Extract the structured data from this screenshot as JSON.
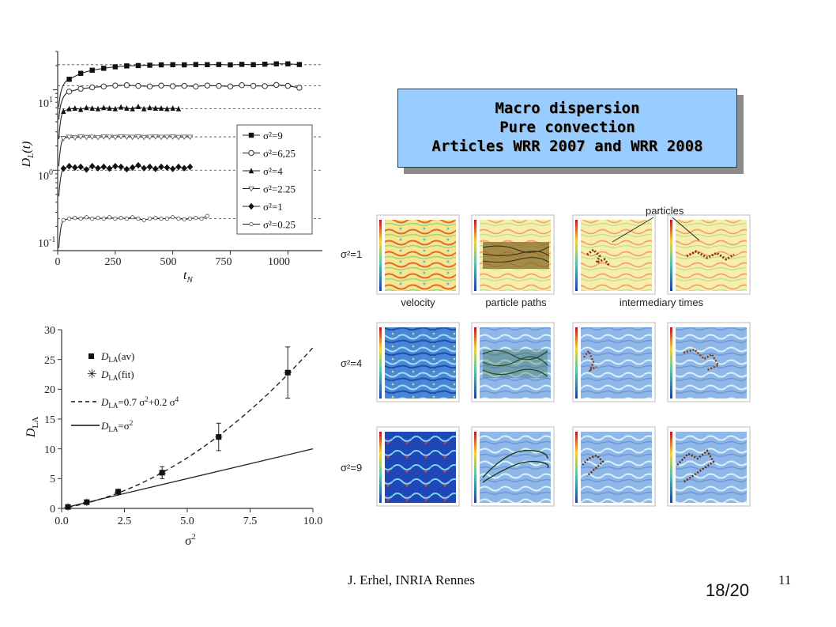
{
  "callout": {
    "line1": "Macro dispersion",
    "line2": "Pure convection",
    "line3": "Articles WRR 2007 and WRR 2008"
  },
  "footer": {
    "author": "J. Erhel, INRIA Rennes",
    "page_number": "11",
    "slide_counter": "18/20"
  },
  "simulation_figure": {
    "rows": [
      "σ²=1",
      "σ²=4",
      "σ²=9"
    ],
    "column_labels": [
      "velocity",
      "particle paths",
      "intermediary times"
    ],
    "annotation": "particles"
  },
  "chart_data": [
    {
      "type": "line",
      "xlabel": "t_N",
      "ylabel": "D_L(t)",
      "xlim": [
        0,
        1150
      ],
      "ylim": [
        0.1,
        30
      ],
      "yscale": "log",
      "x_ticks": [
        "0",
        "250",
        "500",
        "750",
        "1000"
      ],
      "y_ticks": [
        "10^-1",
        "10^0",
        "10^1"
      ],
      "legend_position": "right",
      "series": [
        {
          "name": "σ²=9",
          "marker": "square-filled",
          "asymptote": 20.5,
          "x": [
            50,
            100,
            150,
            200,
            250,
            300,
            350,
            400,
            450,
            500,
            550,
            600,
            650,
            700,
            750,
            800,
            850,
            900,
            950,
            1000,
            1050
          ],
          "y": [
            13.5,
            16,
            17.5,
            18.5,
            19.3,
            19.8,
            20,
            20.2,
            20.4,
            20.5,
            20.4,
            20.6,
            20.5,
            20.6,
            20.4,
            20.7,
            20.5,
            20.8,
            21,
            21,
            20.6
          ]
        },
        {
          "name": "σ²=6,25",
          "marker": "circle-open",
          "asymptote": 11.2,
          "x": [
            50,
            100,
            150,
            200,
            250,
            300,
            350,
            400,
            450,
            500,
            550,
            600,
            650,
            700,
            750,
            800,
            850,
            900,
            950,
            1000,
            1050
          ],
          "y": [
            9.5,
            10.3,
            10.7,
            11,
            11.3,
            11.4,
            11.2,
            11,
            11.3,
            11.1,
            11.2,
            11,
            11.3,
            11.2,
            11,
            11.4,
            11.2,
            11.1,
            11.5,
            11.2,
            10.6
          ]
        },
        {
          "name": "σ²=4",
          "marker": "triangle-filled",
          "asymptote": 5.8,
          "x": [
            25,
            50,
            75,
            100,
            125,
            150,
            175,
            200,
            225,
            250,
            275,
            300,
            325,
            350,
            375,
            400,
            425,
            450,
            475,
            500,
            525
          ],
          "y": [
            5.4,
            5.8,
            5.9,
            5.7,
            6.0,
            5.9,
            5.8,
            6.0,
            5.9,
            5.8,
            6.1,
            5.9,
            5.8,
            6.2,
            5.8,
            6.0,
            5.9,
            5.9,
            5.8,
            5.9,
            5.8
          ]
        },
        {
          "name": "σ²=2.25",
          "marker": "triangle-down-open",
          "asymptote": 2.6,
          "x": [
            25,
            50,
            75,
            100,
            125,
            150,
            175,
            200,
            225,
            250,
            275,
            300,
            325,
            350,
            375,
            400,
            425,
            450,
            475,
            500,
            525,
            550,
            575
          ],
          "y": [
            2.5,
            2.6,
            2.55,
            2.62,
            2.58,
            2.6,
            2.57,
            2.62,
            2.6,
            2.58,
            2.63,
            2.6,
            2.59,
            2.61,
            2.58,
            2.6,
            2.62,
            2.59,
            2.6,
            2.61,
            2.58,
            2.6,
            2.6
          ]
        },
        {
          "name": "σ²=1",
          "marker": "diamond-filled",
          "asymptote": 1.0,
          "x": [
            25,
            50,
            75,
            100,
            125,
            150,
            175,
            200,
            225,
            250,
            275,
            300,
            325,
            350,
            375,
            400,
            425,
            450,
            475,
            500,
            525,
            550,
            575
          ],
          "y": [
            1.05,
            1.12,
            1.08,
            1.1,
            1.02,
            1.12,
            1.06,
            1.1,
            1.05,
            1.12,
            1.1,
            1.03,
            1.08,
            1.15,
            1.06,
            1.1,
            1.04,
            1.1,
            1.08,
            1.04,
            1.1,
            1.06,
            1.1
          ]
        },
        {
          "name": "σ²=0.25",
          "marker": "circle-small-open",
          "asymptote": 0.25,
          "x": [
            25,
            50,
            75,
            100,
            125,
            150,
            175,
            200,
            225,
            250,
            275,
            300,
            325,
            350,
            375,
            400,
            425,
            450,
            475,
            500,
            525,
            550,
            575,
            600,
            625,
            650
          ],
          "y": [
            0.24,
            0.25,
            0.255,
            0.25,
            0.26,
            0.25,
            0.255,
            0.25,
            0.26,
            0.25,
            0.255,
            0.25,
            0.26,
            0.25,
            0.24,
            0.25,
            0.255,
            0.25,
            0.25,
            0.26,
            0.25,
            0.245,
            0.25,
            0.255,
            0.25,
            0.27
          ]
        }
      ]
    },
    {
      "type": "scatter",
      "xlabel": "σ²",
      "ylabel": "D_LA",
      "xlim": [
        0,
        10
      ],
      "ylim": [
        0,
        30
      ],
      "x_ticks": [
        "0.0",
        "2.5",
        "5.0",
        "7.5",
        "10.0"
      ],
      "y_ticks": [
        "0",
        "5",
        "10",
        "15",
        "20",
        "25",
        "30"
      ],
      "legend_position": "top-left",
      "legend": [
        "D_LA(av)",
        "D_LA(fit)",
        "D_LA=0.7 σ²+0.2 σ⁴",
        "D_LA=σ²"
      ],
      "points": {
        "x": [
          0.25,
          1,
          2.25,
          4,
          6.25,
          9
        ],
        "y": [
          0.25,
          1.05,
          2.8,
          6.0,
          12.0,
          22.8
        ],
        "err": [
          0.1,
          0.2,
          0.4,
          1.0,
          2.3,
          4.3
        ]
      },
      "fit_curve": {
        "formula": "0.7*x + 0.2*x^2",
        "x_range": [
          0.25,
          10
        ]
      },
      "identity_line": {
        "formula": "x",
        "x_range": [
          0.25,
          10
        ]
      }
    }
  ]
}
